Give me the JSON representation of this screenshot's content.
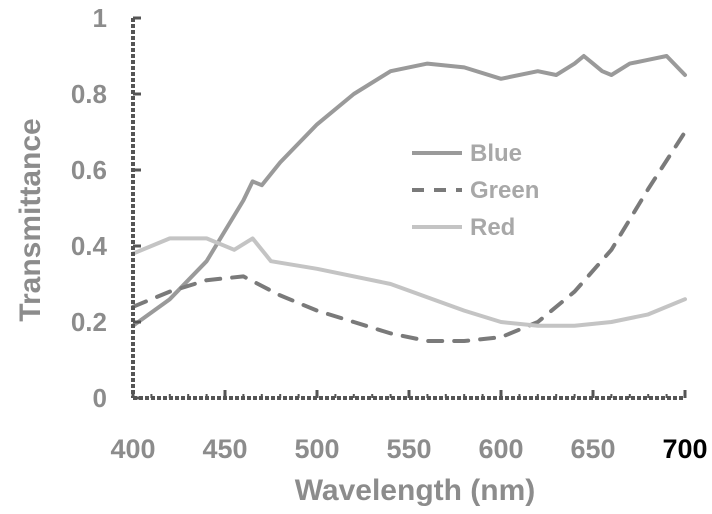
{
  "chart_data": {
    "type": "line",
    "xlabel": "Wavelength (nm)",
    "ylabel": "Transmittance",
    "xlim": [
      400,
      700
    ],
    "ylim": [
      0,
      1
    ],
    "x_ticks": [
      "400",
      "450",
      "500",
      "550",
      "600",
      "650",
      "700"
    ],
    "y_ticks": [
      "0",
      "0.2",
      "0.4",
      "0.6",
      "0.8",
      "1"
    ],
    "legend_position": "center-right",
    "colors": {
      "blue": "#9a9a9a",
      "green": "#7a7a7a",
      "red": "#c4c4c4",
      "axis": "#555555"
    },
    "series": [
      {
        "name": "Blue",
        "style": "solid",
        "x": [
          400,
          420,
          440,
          460,
          465,
          470,
          480,
          490,
          500,
          520,
          540,
          560,
          580,
          600,
          620,
          630,
          640,
          645,
          650,
          655,
          660,
          670,
          680,
          690,
          700
        ],
        "y": [
          0.19,
          0.26,
          0.36,
          0.52,
          0.57,
          0.56,
          0.62,
          0.67,
          0.72,
          0.8,
          0.86,
          0.88,
          0.87,
          0.84,
          0.86,
          0.85,
          0.88,
          0.9,
          0.88,
          0.86,
          0.85,
          0.88,
          0.89,
          0.9,
          0.85
        ]
      },
      {
        "name": "Green",
        "style": "dashed",
        "x": [
          400,
          420,
          440,
          460,
          480,
          500,
          520,
          540,
          560,
          580,
          600,
          620,
          640,
          660,
          680,
          700
        ],
        "y": [
          0.24,
          0.28,
          0.31,
          0.32,
          0.27,
          0.23,
          0.2,
          0.17,
          0.15,
          0.15,
          0.16,
          0.2,
          0.28,
          0.39,
          0.55,
          0.7
        ]
      },
      {
        "name": "Red",
        "style": "solid",
        "x": [
          400,
          420,
          440,
          455,
          465,
          475,
          500,
          540,
          580,
          600,
          620,
          640,
          660,
          680,
          700
        ],
        "y": [
          0.38,
          0.42,
          0.42,
          0.39,
          0.42,
          0.36,
          0.34,
          0.3,
          0.23,
          0.2,
          0.19,
          0.19,
          0.2,
          0.22,
          0.26
        ]
      }
    ]
  }
}
